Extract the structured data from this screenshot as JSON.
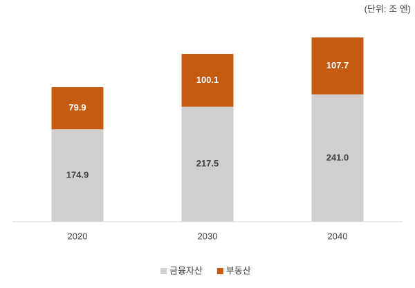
{
  "chart_data": {
    "type": "stacked-bar",
    "subtitle": "(단위: 조 엔)",
    "categories": [
      "2020",
      "2030",
      "2040"
    ],
    "series": [
      {
        "name": "금융자산",
        "color": "#d0cece",
        "values": [
          174.9,
          217.5,
          241.0
        ],
        "value_labels": [
          "174.9",
          "217.5",
          "241.0"
        ],
        "label_color": "#404040"
      },
      {
        "name": "부동산",
        "color": "#c55a11",
        "values": [
          79.9,
          100.1,
          107.7
        ],
        "value_labels": [
          "79.9",
          "100.1",
          "107.7"
        ],
        "label_color": "#ffffff"
      }
    ],
    "ylim": [
      0,
      400
    ]
  }
}
